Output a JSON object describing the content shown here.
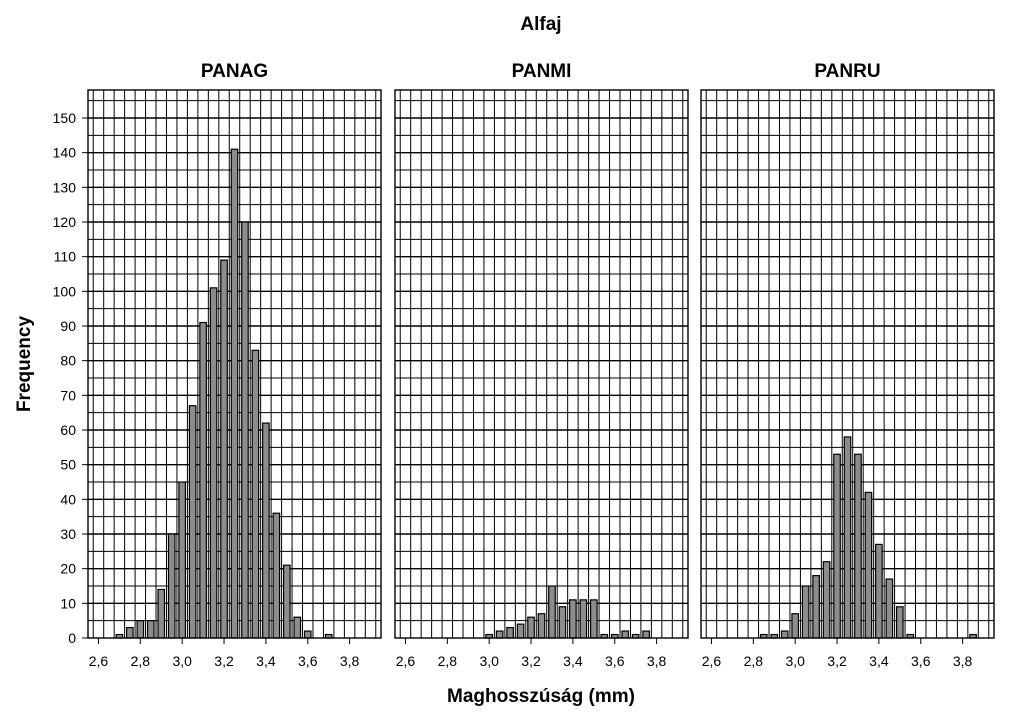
{
  "chart_data": {
    "type": "bar",
    "title": "Alfaj",
    "xlabel": "Maghosszúság (mm)",
    "ylabel": "Frequency",
    "ylim": [
      0,
      155
    ],
    "xlim": [
      2.55,
      3.95
    ],
    "yticks": [
      0,
      10,
      20,
      30,
      40,
      50,
      60,
      70,
      80,
      90,
      100,
      110,
      120,
      130,
      140,
      150
    ],
    "ytick_labels": [
      "0",
      "10",
      "20",
      "30",
      "40",
      "50",
      "60",
      "70",
      "80",
      "90",
      "100",
      "110",
      "120",
      "130",
      "140",
      "150"
    ],
    "xticks": [
      2.6,
      2.8,
      3.0,
      3.2,
      3.4,
      3.6,
      3.8
    ],
    "xtick_labels": [
      "2,6",
      "2,8",
      "3,0",
      "3,2",
      "3,4",
      "3,6",
      "3,8"
    ],
    "bin_width": 0.05,
    "grid": true,
    "panels": [
      {
        "name": "PANAG",
        "x": [
          2.7,
          2.75,
          2.8,
          2.85,
          2.9,
          2.95,
          3.0,
          3.05,
          3.1,
          3.15,
          3.2,
          3.25,
          3.3,
          3.35,
          3.4,
          3.45,
          3.5,
          3.55,
          3.6,
          3.7
        ],
        "values": [
          1,
          3,
          5,
          5,
          14,
          30,
          45,
          67,
          91,
          101,
          109,
          141,
          120,
          83,
          62,
          36,
          21,
          6,
          2,
          1
        ]
      },
      {
        "name": "PANMI",
        "x": [
          3.0,
          3.05,
          3.1,
          3.15,
          3.2,
          3.25,
          3.3,
          3.35,
          3.4,
          3.45,
          3.5,
          3.55,
          3.6,
          3.65,
          3.7,
          3.75
        ],
        "values": [
          1,
          2,
          3,
          4,
          6,
          7,
          15,
          9,
          11,
          11,
          11,
          1,
          1,
          2,
          1,
          2
        ]
      },
      {
        "name": "PANRU",
        "x": [
          2.85,
          2.9,
          2.95,
          3.0,
          3.05,
          3.1,
          3.15,
          3.2,
          3.25,
          3.3,
          3.35,
          3.4,
          3.45,
          3.5,
          3.55,
          3.85
        ],
        "values": [
          1,
          1,
          2,
          7,
          15,
          18,
          22,
          53,
          58,
          53,
          42,
          27,
          17,
          9,
          1,
          1
        ]
      }
    ]
  }
}
